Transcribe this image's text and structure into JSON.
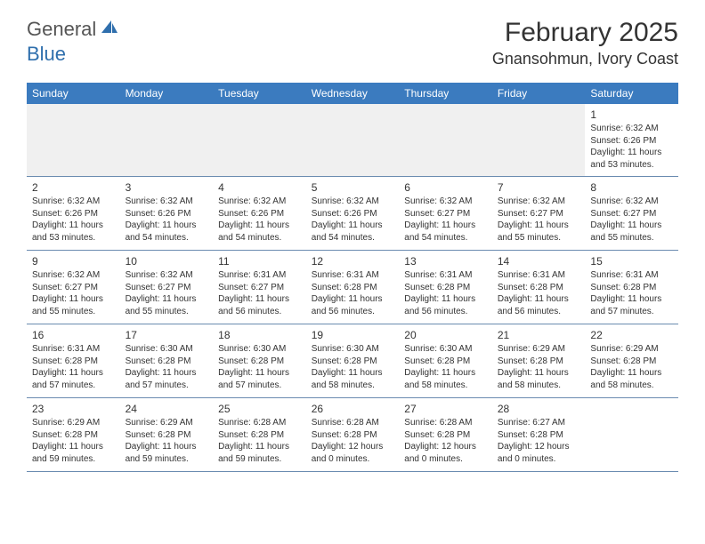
{
  "logo": {
    "general": "General",
    "blue": "Blue"
  },
  "title": "February 2025",
  "location": "Gnansohmun, Ivory Coast",
  "colors": {
    "header_bg": "#3b7bbf",
    "header_text": "#ffffff",
    "border": "#6a8bb0",
    "logo_blue": "#2f6fad",
    "empty_row_bg": "#f0f0f0",
    "text": "#333333"
  },
  "day_names": [
    "Sunday",
    "Monday",
    "Tuesday",
    "Wednesday",
    "Thursday",
    "Friday",
    "Saturday"
  ],
  "weeks": [
    [
      null,
      null,
      null,
      null,
      null,
      null,
      {
        "n": "1",
        "sr": "Sunrise: 6:32 AM",
        "ss": "Sunset: 6:26 PM",
        "dl": "Daylight: 11 hours and 53 minutes."
      }
    ],
    [
      {
        "n": "2",
        "sr": "Sunrise: 6:32 AM",
        "ss": "Sunset: 6:26 PM",
        "dl": "Daylight: 11 hours and 53 minutes."
      },
      {
        "n": "3",
        "sr": "Sunrise: 6:32 AM",
        "ss": "Sunset: 6:26 PM",
        "dl": "Daylight: 11 hours and 54 minutes."
      },
      {
        "n": "4",
        "sr": "Sunrise: 6:32 AM",
        "ss": "Sunset: 6:26 PM",
        "dl": "Daylight: 11 hours and 54 minutes."
      },
      {
        "n": "5",
        "sr": "Sunrise: 6:32 AM",
        "ss": "Sunset: 6:26 PM",
        "dl": "Daylight: 11 hours and 54 minutes."
      },
      {
        "n": "6",
        "sr": "Sunrise: 6:32 AM",
        "ss": "Sunset: 6:27 PM",
        "dl": "Daylight: 11 hours and 54 minutes."
      },
      {
        "n": "7",
        "sr": "Sunrise: 6:32 AM",
        "ss": "Sunset: 6:27 PM",
        "dl": "Daylight: 11 hours and 55 minutes."
      },
      {
        "n": "8",
        "sr": "Sunrise: 6:32 AM",
        "ss": "Sunset: 6:27 PM",
        "dl": "Daylight: 11 hours and 55 minutes."
      }
    ],
    [
      {
        "n": "9",
        "sr": "Sunrise: 6:32 AM",
        "ss": "Sunset: 6:27 PM",
        "dl": "Daylight: 11 hours and 55 minutes."
      },
      {
        "n": "10",
        "sr": "Sunrise: 6:32 AM",
        "ss": "Sunset: 6:27 PM",
        "dl": "Daylight: 11 hours and 55 minutes."
      },
      {
        "n": "11",
        "sr": "Sunrise: 6:31 AM",
        "ss": "Sunset: 6:27 PM",
        "dl": "Daylight: 11 hours and 56 minutes."
      },
      {
        "n": "12",
        "sr": "Sunrise: 6:31 AM",
        "ss": "Sunset: 6:28 PM",
        "dl": "Daylight: 11 hours and 56 minutes."
      },
      {
        "n": "13",
        "sr": "Sunrise: 6:31 AM",
        "ss": "Sunset: 6:28 PM",
        "dl": "Daylight: 11 hours and 56 minutes."
      },
      {
        "n": "14",
        "sr": "Sunrise: 6:31 AM",
        "ss": "Sunset: 6:28 PM",
        "dl": "Daylight: 11 hours and 56 minutes."
      },
      {
        "n": "15",
        "sr": "Sunrise: 6:31 AM",
        "ss": "Sunset: 6:28 PM",
        "dl": "Daylight: 11 hours and 57 minutes."
      }
    ],
    [
      {
        "n": "16",
        "sr": "Sunrise: 6:31 AM",
        "ss": "Sunset: 6:28 PM",
        "dl": "Daylight: 11 hours and 57 minutes."
      },
      {
        "n": "17",
        "sr": "Sunrise: 6:30 AM",
        "ss": "Sunset: 6:28 PM",
        "dl": "Daylight: 11 hours and 57 minutes."
      },
      {
        "n": "18",
        "sr": "Sunrise: 6:30 AM",
        "ss": "Sunset: 6:28 PM",
        "dl": "Daylight: 11 hours and 57 minutes."
      },
      {
        "n": "19",
        "sr": "Sunrise: 6:30 AM",
        "ss": "Sunset: 6:28 PM",
        "dl": "Daylight: 11 hours and 58 minutes."
      },
      {
        "n": "20",
        "sr": "Sunrise: 6:30 AM",
        "ss": "Sunset: 6:28 PM",
        "dl": "Daylight: 11 hours and 58 minutes."
      },
      {
        "n": "21",
        "sr": "Sunrise: 6:29 AM",
        "ss": "Sunset: 6:28 PM",
        "dl": "Daylight: 11 hours and 58 minutes."
      },
      {
        "n": "22",
        "sr": "Sunrise: 6:29 AM",
        "ss": "Sunset: 6:28 PM",
        "dl": "Daylight: 11 hours and 58 minutes."
      }
    ],
    [
      {
        "n": "23",
        "sr": "Sunrise: 6:29 AM",
        "ss": "Sunset: 6:28 PM",
        "dl": "Daylight: 11 hours and 59 minutes."
      },
      {
        "n": "24",
        "sr": "Sunrise: 6:29 AM",
        "ss": "Sunset: 6:28 PM",
        "dl": "Daylight: 11 hours and 59 minutes."
      },
      {
        "n": "25",
        "sr": "Sunrise: 6:28 AM",
        "ss": "Sunset: 6:28 PM",
        "dl": "Daylight: 11 hours and 59 minutes."
      },
      {
        "n": "26",
        "sr": "Sunrise: 6:28 AM",
        "ss": "Sunset: 6:28 PM",
        "dl": "Daylight: 12 hours and 0 minutes."
      },
      {
        "n": "27",
        "sr": "Sunrise: 6:28 AM",
        "ss": "Sunset: 6:28 PM",
        "dl": "Daylight: 12 hours and 0 minutes."
      },
      {
        "n": "28",
        "sr": "Sunrise: 6:27 AM",
        "ss": "Sunset: 6:28 PM",
        "dl": "Daylight: 12 hours and 0 minutes."
      },
      null
    ]
  ]
}
